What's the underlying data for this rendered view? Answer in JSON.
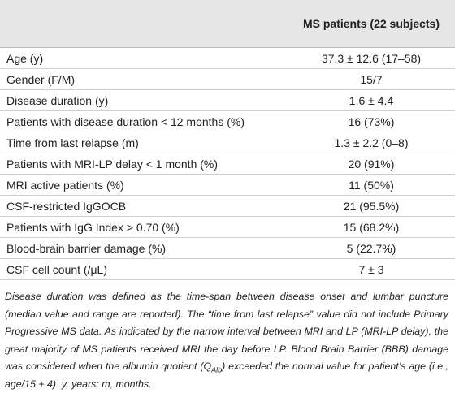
{
  "table": {
    "header": {
      "column": "MS patients (22 subjects)"
    },
    "rows": [
      [
        "Age (y)",
        "37.3 ± 12.6 (17–58)"
      ],
      [
        "Gender (F/M)",
        "15/7"
      ],
      [
        "Disease duration (y)",
        "1.6 ± 4.4"
      ],
      [
        "Patients with disease duration < 12 months (%)",
        "16 (73%)"
      ],
      [
        "Time from last relapse (m)",
        "1.3 ± 2.2 (0–8)"
      ],
      [
        "Patients with MRI-LP delay < 1 month (%)",
        "20 (91%)"
      ],
      [
        "MRI active patients (%)",
        "11 (50%)"
      ],
      [
        "CSF-restricted IgGOCB",
        "21 (95.5%)"
      ],
      [
        "Patients with IgG Index > 0.70 (%)",
        "15 (68.2%)"
      ],
      [
        "Blood-brain barrier damage (%)",
        "5 (22.7%)"
      ],
      [
        "CSF cell count (/μL)",
        "7 ± 3"
      ]
    ]
  },
  "footnote": {
    "text_before": "Disease duration was defined as the time-span between disease onset and lumbar puncture (median value and range are reported). The “time from last relapse” value did not include Primary Progressive MS data. As indicated by the narrow interval between MRI and LP (MRI-LP delay), the great majority of MS patients received MRI the day before LP. Blood Brain Barrier (BBB) damage was considered when the albumin quotient (",
    "q": "Q",
    "sub": "Alb",
    "text_after": ") exceeded the normal value for patient’s age (i.e., age/15 + 4). y, years; m, months."
  }
}
